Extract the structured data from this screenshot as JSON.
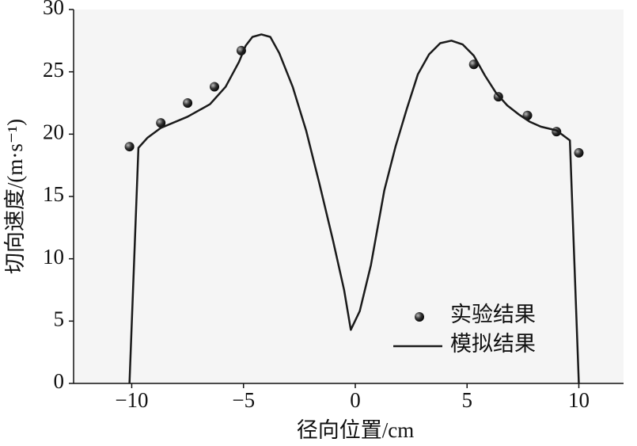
{
  "chart_data": {
    "type": "line",
    "x_label": "径向位置/cm",
    "y_label": "切向速度/(m·s⁻¹)",
    "xlim": [
      -12.6,
      12
    ],
    "ylim": [
      0,
      30
    ],
    "xticks": [
      {
        "value": -10,
        "label": "−10"
      },
      {
        "value": -5,
        "label": "−5"
      },
      0,
      5,
      10
    ],
    "yticks": [
      0,
      5,
      10,
      15,
      20,
      25,
      30
    ],
    "grid": false,
    "legend": "lower right",
    "series": [
      {
        "name": "实验结果",
        "type": "scatter",
        "color": "#333333",
        "x": [
          -10.1,
          -8.7,
          -7.5,
          -6.3,
          -5.1,
          5.3,
          6.4,
          7.7,
          9.0,
          10.0
        ],
        "values": [
          19.0,
          20.9,
          22.5,
          23.8,
          26.7,
          25.6,
          23.0,
          21.5,
          20.2,
          18.5
        ]
      },
      {
        "name": "模拟结果",
        "type": "line",
        "color": "#1a1a1a",
        "x": [
          -10.1,
          -9.7,
          -9.3,
          -8.7,
          -7.5,
          -6.5,
          -5.8,
          -5.2,
          -4.9,
          -4.6,
          -4.2,
          -3.8,
          -3.4,
          -2.8,
          -2.2,
          -1.6,
          -1.0,
          -0.5,
          -0.2,
          0.2,
          0.7,
          1.3,
          1.8,
          2.3,
          2.8,
          3.3,
          3.8,
          4.3,
          4.8,
          5.3,
          5.8,
          6.3,
          6.8,
          7.3,
          7.8,
          8.3,
          9.0,
          9.6,
          10.0
        ],
        "values": [
          0,
          18.9,
          19.7,
          20.5,
          21.4,
          22.4,
          23.8,
          25.8,
          27.1,
          27.8,
          28.0,
          27.8,
          26.5,
          23.8,
          20.3,
          16.0,
          11.5,
          7.5,
          4.3,
          5.8,
          9.5,
          15.5,
          19.0,
          22.0,
          24.8,
          26.4,
          27.3,
          27.5,
          27.2,
          26.3,
          24.7,
          23.3,
          22.3,
          21.6,
          21.0,
          20.6,
          20.3,
          19.5,
          0
        ]
      }
    ]
  }
}
